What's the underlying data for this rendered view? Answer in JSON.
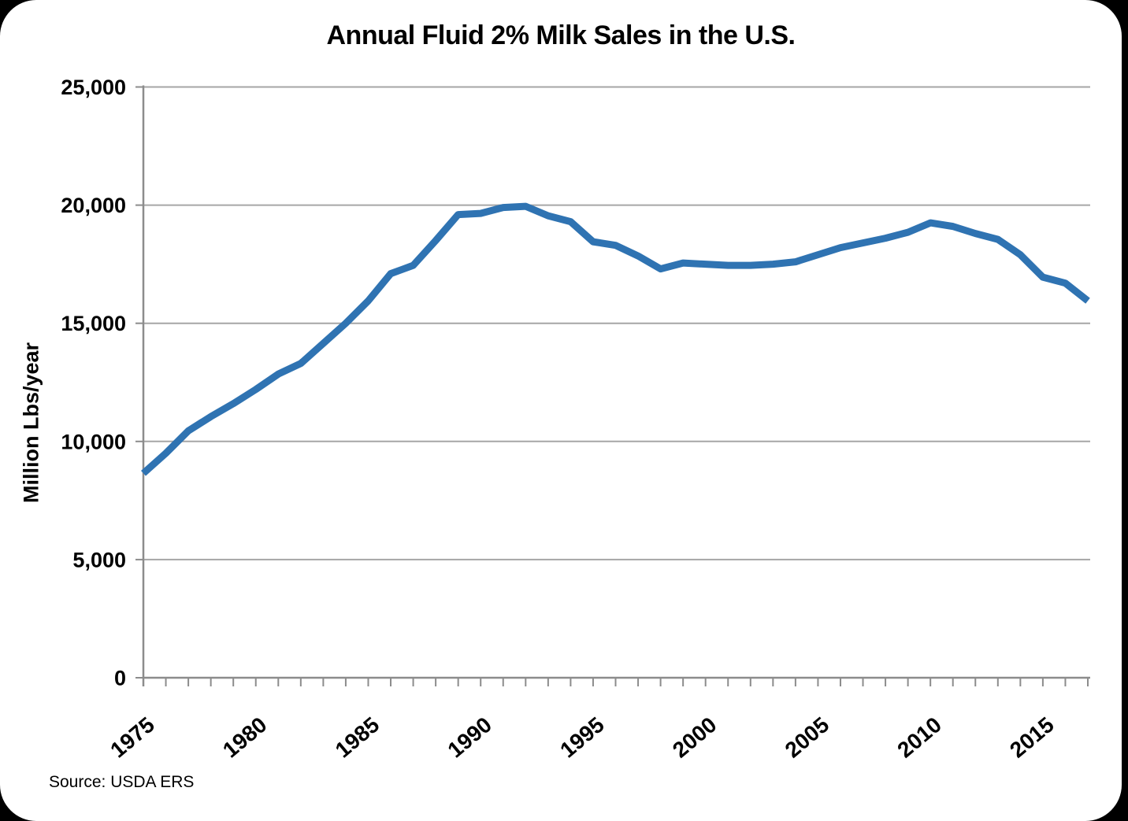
{
  "page": {
    "background": "#000000",
    "card_background": "#FFFFFF"
  },
  "source_note": "Source: USDA ERS",
  "colors": {
    "line": "#2F73B2",
    "gridline": "#A6A6A6",
    "axis": "#8C8C8C",
    "text": "#000000"
  },
  "chart_data": {
    "type": "line",
    "title": "Annual Fluid 2% Milk Sales in the U.S.",
    "xlabel": "",
    "ylabel": "Million Lbs/year",
    "unit": "Million Lbs/year",
    "grid": true,
    "legend": "none",
    "ylim": [
      0,
      25000
    ],
    "yticks": [
      0,
      5000,
      10000,
      15000,
      20000,
      25000
    ],
    "ytick_labels": [
      "0",
      "5,000",
      "10,000",
      "15,000",
      "20,000",
      "25,000"
    ],
    "xticks": [
      1975,
      1980,
      1985,
      1990,
      1995,
      2000,
      2005,
      2010,
      2015
    ],
    "xtick_labels": [
      "1975",
      "1980",
      "1985",
      "1990",
      "1995",
      "2000",
      "2005",
      "2010",
      "2015"
    ],
    "x": [
      1975,
      1976,
      1977,
      1978,
      1979,
      1980,
      1981,
      1982,
      1983,
      1984,
      1985,
      1986,
      1987,
      1988,
      1989,
      1990,
      1991,
      1992,
      1993,
      1994,
      1995,
      1996,
      1997,
      1998,
      1999,
      2000,
      2001,
      2002,
      2003,
      2004,
      2005,
      2006,
      2007,
      2008,
      2009,
      2010,
      2011,
      2012,
      2013,
      2014,
      2015,
      2016,
      2017
    ],
    "values": [
      8650,
      9500,
      10450,
      11050,
      11600,
      12200,
      12850,
      13300,
      14150,
      15000,
      15950,
      17100,
      17450,
      18500,
      19600,
      19650,
      19900,
      19950,
      19550,
      19300,
      18450,
      18300,
      17850,
      17300,
      17550,
      17500,
      17450,
      17450,
      17500,
      17600,
      17900,
      18200,
      18400,
      18600,
      18850,
      19250,
      19100,
      18800,
      18550,
      17900,
      16950,
      16700,
      15950
    ]
  }
}
